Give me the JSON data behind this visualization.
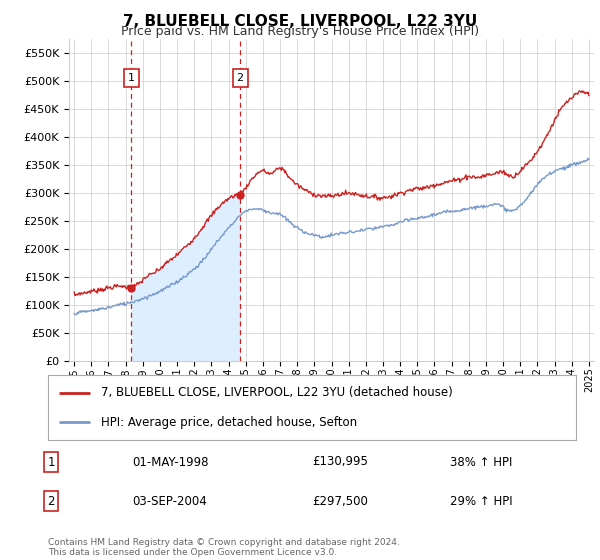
{
  "title": "7, BLUEBELL CLOSE, LIVERPOOL, L22 3YU",
  "subtitle": "Price paid vs. HM Land Registry's House Price Index (HPI)",
  "ytick_values": [
    0,
    50000,
    100000,
    150000,
    200000,
    250000,
    300000,
    350000,
    400000,
    450000,
    500000,
    550000
  ],
  "ylim": [
    0,
    575000
  ],
  "xmin_year": 1995,
  "xmax_year": 2025,
  "xtick_years": [
    1995,
    1996,
    1997,
    1998,
    1999,
    2000,
    2001,
    2002,
    2003,
    2004,
    2005,
    2006,
    2007,
    2008,
    2009,
    2010,
    2011,
    2012,
    2013,
    2014,
    2015,
    2016,
    2017,
    2018,
    2019,
    2020,
    2021,
    2022,
    2023,
    2024,
    2025
  ],
  "sale1_year": 1998.33,
  "sale1_price": 130995,
  "sale2_year": 2004.67,
  "sale2_price": 297500,
  "red_line_color": "#cc2222",
  "blue_line_color": "#7799cc",
  "dashed_line_color": "#cc2222",
  "sale_box_edge_color": "#cc2222",
  "shade_color": "#ddeeff",
  "legend_line1": "7, BLUEBELL CLOSE, LIVERPOOL, L22 3YU (detached house)",
  "legend_line2": "HPI: Average price, detached house, Sefton",
  "table_row1_num": "1",
  "table_row1_date": "01-MAY-1998",
  "table_row1_price": "£130,995",
  "table_row1_hpi": "38% ↑ HPI",
  "table_row2_num": "2",
  "table_row2_date": "03-SEP-2004",
  "table_row2_price": "£297,500",
  "table_row2_hpi": "29% ↑ HPI",
  "footer_text": "Contains HM Land Registry data © Crown copyright and database right 2024.\nThis data is licensed under the Open Government Licence v3.0.",
  "background_color": "#ffffff",
  "grid_color": "#cccccc",
  "red_curve": {
    "years": [
      1995.0,
      1995.083,
      1995.167,
      1995.25,
      1995.333,
      1995.417,
      1995.5,
      1995.583,
      1995.667,
      1995.75,
      1995.833,
      1995.917,
      1996.0,
      1996.083,
      1996.167,
      1996.25,
      1996.333,
      1996.417,
      1996.5,
      1996.583,
      1996.667,
      1996.75,
      1996.833,
      1996.917,
      1997.0,
      1997.083,
      1997.167,
      1997.25,
      1997.333,
      1997.417,
      1997.5,
      1997.583,
      1997.667,
      1997.75,
      1997.833,
      1997.917,
      1998.0,
      1998.083,
      1998.167,
      1998.25,
      1998.333,
      1998.417,
      1998.5,
      1998.583,
      1998.667,
      1998.75,
      1998.833,
      1998.917,
      1999.0,
      1999.5,
      2000.0,
      2000.5,
      2001.0,
      2001.5,
      2002.0,
      2002.5,
      2003.0,
      2003.5,
      2004.0,
      2004.5,
      2004.67,
      2005.0,
      2005.5,
      2006.0,
      2006.5,
      2007.0,
      2007.5,
      2008.0,
      2008.5,
      2009.0,
      2009.5,
      2010.0,
      2010.5,
      2011.0,
      2011.5,
      2012.0,
      2012.5,
      2013.0,
      2013.5,
      2014.0,
      2014.5,
      2015.0,
      2015.5,
      2016.0,
      2016.5,
      2017.0,
      2017.5,
      2018.0,
      2018.5,
      2019.0,
      2019.5,
      2020.0,
      2020.5,
      2021.0,
      2021.5,
      2022.0,
      2022.5,
      2023.0,
      2023.5,
      2024.0,
      2024.5,
      2025.0
    ],
    "values": [
      120000,
      118000,
      119000,
      121000,
      122000,
      120000,
      121000,
      123000,
      122000,
      124000,
      123000,
      125000,
      124000,
      126000,
      125000,
      127000,
      126000,
      128000,
      127000,
      129000,
      128000,
      130000,
      129000,
      131000,
      130000,
      132000,
      131000,
      133000,
      132000,
      134000,
      133000,
      134000,
      133000,
      135000,
      134000,
      133000,
      132000,
      133000,
      132000,
      131000,
      130995,
      132000,
      134000,
      135000,
      137000,
      138000,
      140000,
      142000,
      145000,
      155000,
      165000,
      178000,
      190000,
      205000,
      220000,
      240000,
      260000,
      278000,
      290000,
      297000,
      297500,
      310000,
      330000,
      340000,
      335000,
      345000,
      330000,
      315000,
      305000,
      298000,
      295000,
      295000,
      298000,
      300000,
      298000,
      295000,
      293000,
      292000,
      295000,
      300000,
      305000,
      308000,
      310000,
      315000,
      318000,
      322000,
      325000,
      330000,
      328000,
      332000,
      335000,
      338000,
      330000,
      340000,
      355000,
      375000,
      400000,
      430000,
      455000,
      470000,
      480000,
      475000
    ]
  },
  "blue_curve": {
    "years": [
      1995.0,
      1995.5,
      1996.0,
      1996.5,
      1997.0,
      1997.5,
      1998.0,
      1998.5,
      1999.0,
      1999.5,
      2000.0,
      2000.5,
      2001.0,
      2001.5,
      2002.0,
      2002.5,
      2003.0,
      2003.5,
      2004.0,
      2004.5,
      2005.0,
      2005.5,
      2006.0,
      2006.5,
      2007.0,
      2007.5,
      2008.0,
      2008.5,
      2009.0,
      2009.5,
      2010.0,
      2010.5,
      2011.0,
      2011.5,
      2012.0,
      2012.5,
      2013.0,
      2013.5,
      2014.0,
      2014.5,
      2015.0,
      2015.5,
      2016.0,
      2016.5,
      2017.0,
      2017.5,
      2018.0,
      2018.5,
      2019.0,
      2019.5,
      2020.0,
      2020.5,
      2021.0,
      2021.5,
      2022.0,
      2022.5,
      2023.0,
      2023.5,
      2024.0,
      2024.5,
      2025.0
    ],
    "values": [
      85000,
      88000,
      90000,
      93000,
      96000,
      100000,
      103000,
      107000,
      112000,
      118000,
      125000,
      133000,
      142000,
      153000,
      165000,
      180000,
      200000,
      220000,
      238000,
      255000,
      268000,
      272000,
      270000,
      265000,
      262000,
      250000,
      238000,
      230000,
      225000,
      222000,
      225000,
      228000,
      230000,
      232000,
      235000,
      237000,
      240000,
      243000,
      248000,
      252000,
      255000,
      258000,
      262000,
      265000,
      268000,
      270000,
      273000,
      275000,
      278000,
      280000,
      275000,
      268000,
      278000,
      295000,
      315000,
      330000,
      340000,
      345000,
      350000,
      355000,
      360000
    ]
  }
}
